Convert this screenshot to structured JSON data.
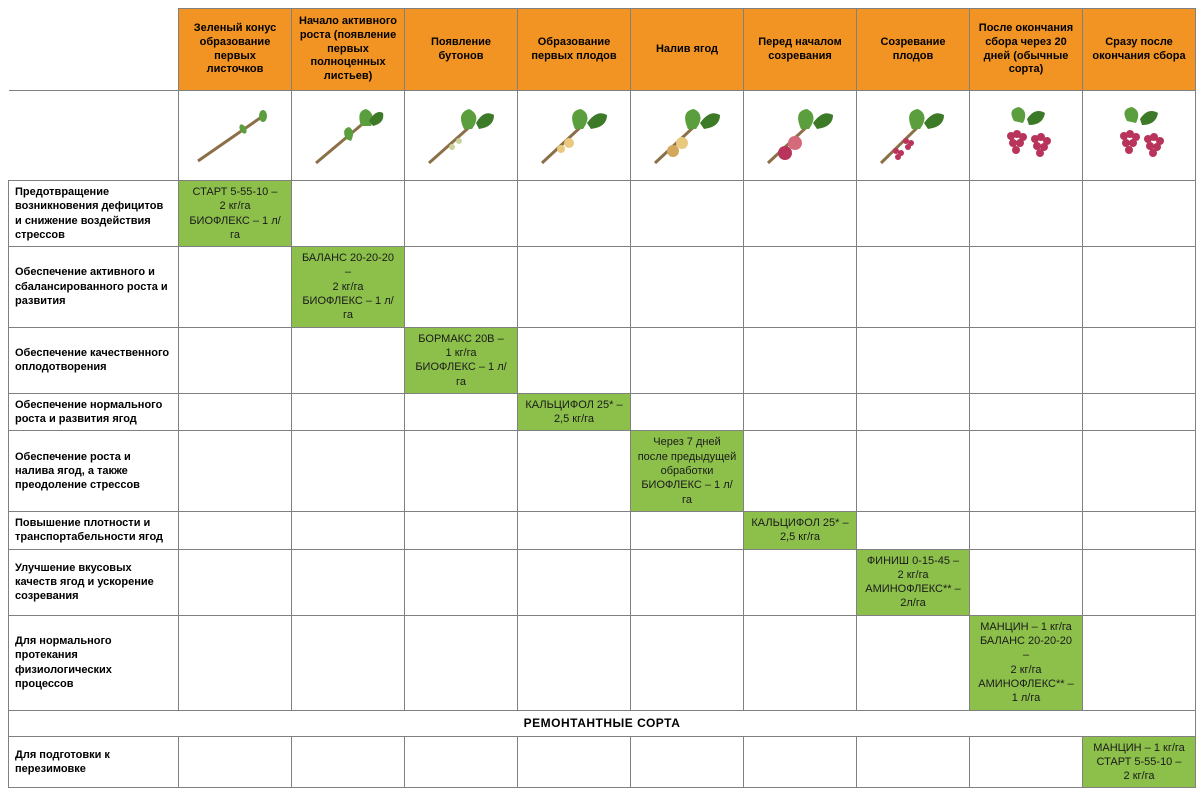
{
  "colors": {
    "header_bg": "#f29424",
    "cell_fill": "#8cc04b",
    "border": "#808080",
    "leaf": "#5a9e3d",
    "leaf_dark": "#3d7a28",
    "branch": "#8b6f47",
    "berry_red": "#b8345a",
    "berry_light": "#e8c97d"
  },
  "fonts": {
    "header_size": 11,
    "label_size": 11,
    "cell_size": 11
  },
  "stages": [
    "Зеленый конус образование первых листочков",
    "Начало активного роста (появление первых полноценных листьев)",
    "Появление бутонов",
    "Образование первых плодов",
    "Налив ягод",
    "Перед началом созревания",
    "Созревание плодов",
    "После окончания сбора через 20 дней (обычные сорта)",
    "Сразу после окончания сбора"
  ],
  "rows": [
    {
      "label": "Предотвращение возникновения дефицитов и снижение воздействия стрессов",
      "cells": [
        "СТАРТ 5-55-10 –\n2 кг/га\nБИОФЛЕКС – 1 л/га",
        "",
        "",
        "",
        "",
        "",
        "",
        "",
        ""
      ]
    },
    {
      "label": "Обеспечение активного и сбалансированного роста и развития",
      "cells": [
        "",
        "БАЛАНС 20-20-20 –\n2 кг/га\nБИОФЛЕКС – 1 л/га",
        "",
        "",
        "",
        "",
        "",
        "",
        ""
      ]
    },
    {
      "label": "Обеспечение качественного оплодотворения",
      "cells": [
        "",
        "",
        "БОРМАКС 20В –\n1 кг/га\nБИОФЛЕКС – 1 л/га",
        "",
        "",
        "",
        "",
        "",
        ""
      ]
    },
    {
      "label": "Обеспечение нормального роста и развития ягод",
      "cells": [
        "",
        "",
        "",
        "КАЛЬЦИФОЛ 25* –\n2,5 кг/га",
        "",
        "",
        "",
        "",
        ""
      ]
    },
    {
      "label": "Обеспечение роста и налива ягод, а также преодоление стрессов",
      "cells": [
        "",
        "",
        "",
        "",
        "Через 7 дней после предыдущей обработки\nБИОФЛЕКС – 1 л/га",
        "",
        "",
        "",
        ""
      ]
    },
    {
      "label": "Повышение плотности и транспортабельности ягод",
      "cells": [
        "",
        "",
        "",
        "",
        "",
        "КАЛЬЦИФОЛ 25* –\n2,5 кг/га",
        "",
        "",
        ""
      ]
    },
    {
      "label": "Улучшение вкусовых качеств ягод и ускорение созревания",
      "cells": [
        "",
        "",
        "",
        "",
        "",
        "",
        "ФИНИШ 0-15-45 –\n2 кг/га\nАМИНОФЛЕКС** –\n2л/га",
        "",
        ""
      ]
    },
    {
      "label": "Для нормального протекания физиологических процессов",
      "cells": [
        "",
        "",
        "",
        "",
        "",
        "",
        "",
        "МАНЦИН – 1 кг/га\nБАЛАНС 20-20-20 –\n2 кг/га\nАМИНОФЛЕКС** –\n1 л/га",
        ""
      ]
    }
  ],
  "section_label": "РЕМОНТАНТНЫЕ СОРТА",
  "rows2": [
    {
      "label": "Для подготовки к перезимовке",
      "cells": [
        "",
        "",
        "",
        "",
        "",
        "",
        "",
        "",
        "МАНЦИН – 1 кг/га\nСТАРТ 5-55-10 –\n2 кг/га"
      ]
    }
  ]
}
